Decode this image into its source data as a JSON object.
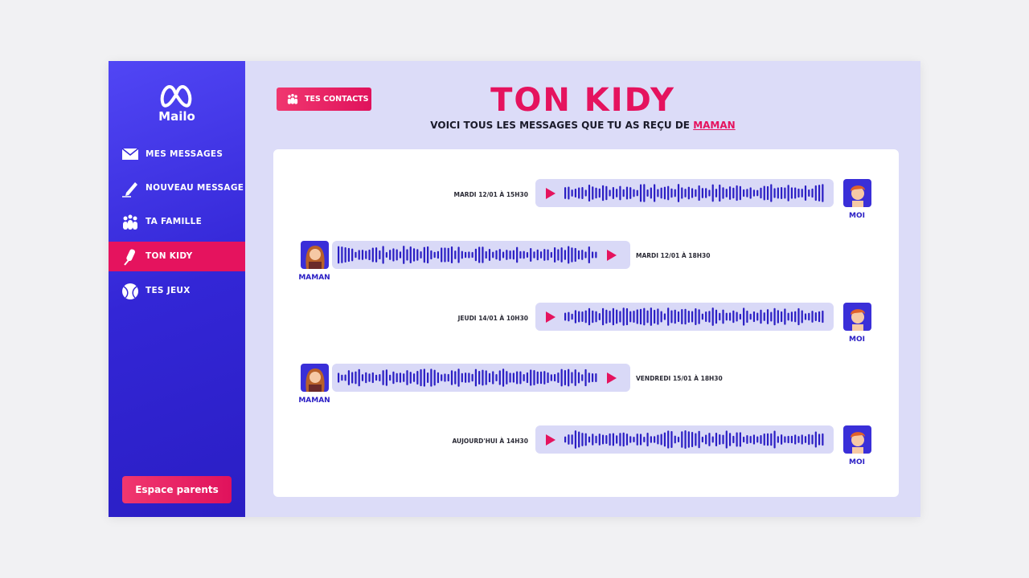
{
  "sidebar": {
    "logo": "Mailo",
    "menu": [
      "MES MESSAGES",
      "NOUVEAU MESSAGE",
      "TA FAMILLE",
      "TON KIDY",
      "TES JEUX"
    ],
    "parents_button": "Espace parents"
  },
  "header": {
    "contacts_button": "TES CONTACTS",
    "title": "TON KIDY",
    "subtitle": "VOICI TOUS LES MESSAGES QUE TU AS REÇU DE",
    "subtitle_name": "MAMAN"
  },
  "messages": [
    {
      "sender": "MOI",
      "date": "MARDI 12/01 À 15H30"
    },
    {
      "sender": "MAMAN",
      "date": "MARDI 12/01 À 18H30"
    },
    {
      "sender": "MOI",
      "date": "JEUDI 14/01 À 10H30"
    },
    {
      "sender": "MAMAN",
      "date": "VENDREDI 15/01 À 18H30"
    },
    {
      "sender": "MOI",
      "date": "AUJOURD'HUI À 14H30"
    }
  ]
}
